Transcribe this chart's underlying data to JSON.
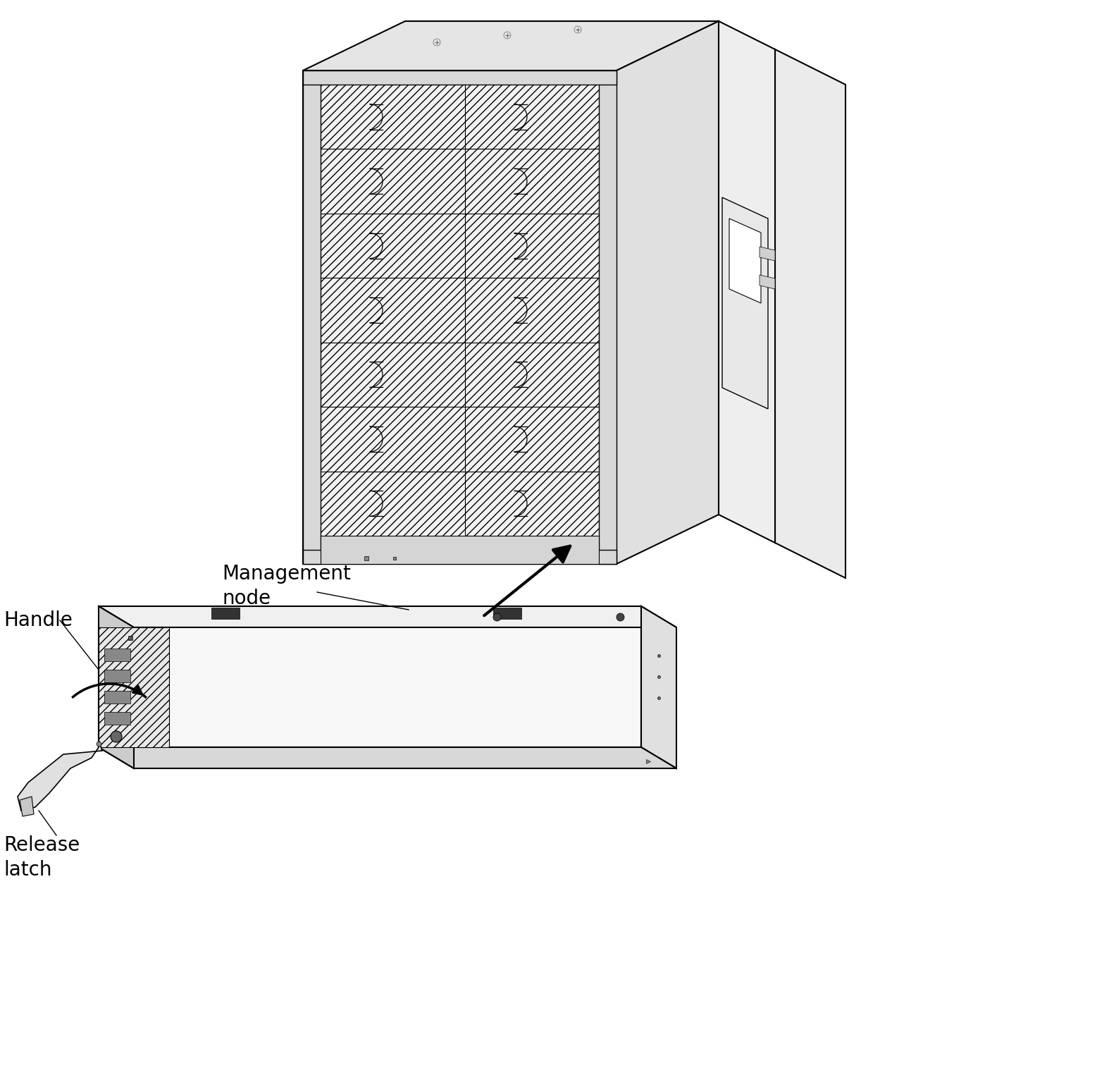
{
  "bg_color": "#ffffff",
  "line_color": "#000000",
  "labels": {
    "management_node": "Management\nnode",
    "handle": "Handle",
    "release_latch": "Release\nlatch"
  },
  "label_fontsize": 20,
  "figsize": [
    15.74,
    15.25
  ],
  "dpi": 100
}
